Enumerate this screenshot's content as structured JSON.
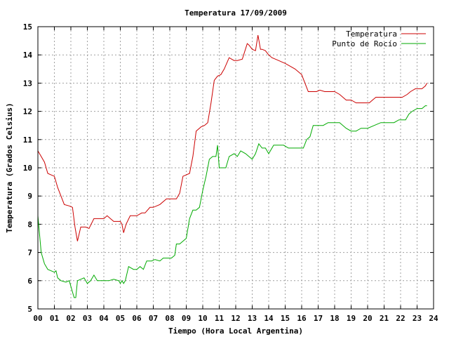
{
  "chart_data": {
    "type": "line",
    "title": "Temperatura 17/09/2009",
    "xlabel": "Tiempo (Hora Local Argentina)",
    "ylabel": "Temperatura (Grados Celsius)",
    "xlim": [
      0,
      24
    ],
    "ylim": [
      5,
      15
    ],
    "x_ticks": [
      "00",
      "01",
      "02",
      "03",
      "04",
      "05",
      "06",
      "07",
      "08",
      "09",
      "10",
      "11",
      "12",
      "13",
      "14",
      "15",
      "16",
      "17",
      "18",
      "19",
      "20",
      "21",
      "22",
      "23",
      "24"
    ],
    "y_ticks": [
      "5",
      "6",
      "7",
      "8",
      "9",
      "10",
      "11",
      "12",
      "13",
      "14",
      "15"
    ],
    "grid": true,
    "legend_position": "top-right",
    "series": [
      {
        "name": "Temperatura",
        "color": "#cc0000",
        "x": [
          0,
          0.2,
          0.4,
          0.6,
          0.8,
          1.0,
          1.2,
          1.4,
          1.6,
          1.9,
          2.1,
          2.25,
          2.4,
          2.6,
          2.9,
          3.1,
          3.4,
          3.7,
          4.0,
          4.2,
          4.4,
          4.6,
          4.8,
          5.0,
          5.1,
          5.2,
          5.35,
          5.6,
          6.0,
          6.3,
          6.5,
          6.8,
          7.0,
          7.4,
          7.8,
          8.2,
          8.4,
          8.6,
          8.8,
          9.0,
          9.2,
          9.4,
          9.6,
          9.9,
          10.1,
          10.3,
          10.5,
          10.7,
          10.9,
          11.1,
          11.3,
          11.6,
          11.9,
          12.1,
          12.4,
          12.7,
          12.8,
          13.0,
          13.2,
          13.35,
          13.5,
          13.6,
          13.8,
          14.0,
          14.2,
          14.4,
          14.6,
          14.8,
          15.0,
          15.3,
          15.6,
          15.8,
          16.0,
          16.2,
          16.4,
          16.6,
          16.9,
          17.1,
          17.4,
          17.7,
          18.0,
          18.3,
          18.7,
          19.0,
          19.3,
          19.6,
          19.9,
          20.1,
          20.3,
          20.5,
          20.8,
          21.1,
          21.5,
          21.9,
          22.1,
          22.4,
          22.6,
          22.9,
          23.1,
          23.3,
          23.5,
          23.6
        ],
        "values": [
          10.6,
          10.4,
          10.2,
          9.8,
          9.75,
          9.7,
          9.3,
          9.0,
          8.7,
          8.65,
          8.6,
          7.9,
          7.4,
          7.9,
          7.9,
          7.85,
          8.2,
          8.2,
          8.2,
          8.3,
          8.2,
          8.1,
          8.1,
          8.1,
          8.0,
          7.7,
          8.0,
          8.3,
          8.3,
          8.4,
          8.4,
          8.6,
          8.6,
          8.7,
          8.9,
          8.9,
          8.9,
          9.1,
          9.7,
          9.75,
          9.8,
          10.4,
          11.3,
          11.45,
          11.5,
          11.6,
          12.3,
          13.1,
          13.25,
          13.3,
          13.5,
          13.9,
          13.8,
          13.8,
          13.85,
          14.4,
          14.35,
          14.2,
          14.15,
          14.7,
          14.2,
          14.2,
          14.15,
          14.0,
          13.9,
          13.85,
          13.8,
          13.75,
          13.7,
          13.6,
          13.5,
          13.4,
          13.3,
          13.0,
          12.7,
          12.7,
          12.7,
          12.75,
          12.7,
          12.7,
          12.7,
          12.6,
          12.4,
          12.4,
          12.3,
          12.3,
          12.3,
          12.3,
          12.4,
          12.5,
          12.5,
          12.5,
          12.5,
          12.5,
          12.5,
          12.6,
          12.7,
          12.8,
          12.8,
          12.8,
          12.9,
          13.0
        ]
      },
      {
        "name": "Punto de Rocío",
        "color": "#00aa00",
        "x": [
          0,
          0.2,
          0.4,
          0.6,
          0.8,
          1.0,
          1.1,
          1.2,
          1.4,
          1.7,
          1.9,
          2.0,
          2.1,
          2.2,
          2.3,
          2.4,
          2.6,
          2.8,
          3.0,
          3.2,
          3.4,
          3.6,
          3.8,
          4.0,
          4.3,
          4.6,
          4.9,
          5.0,
          5.1,
          5.2,
          5.3,
          5.5,
          5.8,
          6.0,
          6.2,
          6.4,
          6.6,
          6.9,
          7.1,
          7.4,
          7.6,
          7.9,
          8.1,
          8.3,
          8.4,
          8.6,
          8.8,
          9.0,
          9.2,
          9.4,
          9.6,
          9.8,
          10.0,
          10.2,
          10.4,
          10.6,
          10.8,
          10.9,
          11.0,
          11.2,
          11.4,
          11.6,
          11.9,
          12.1,
          12.3,
          12.6,
          12.8,
          13.0,
          13.2,
          13.4,
          13.6,
          13.8,
          14.0,
          14.3,
          14.6,
          14.9,
          15.2,
          15.6,
          15.9,
          16.1,
          16.3,
          16.5,
          16.7,
          17.0,
          17.3,
          17.6,
          17.9,
          18.3,
          18.7,
          19.0,
          19.3,
          19.6,
          20.0,
          20.4,
          20.8,
          21.2,
          21.6,
          21.9,
          22.1,
          22.3,
          22.5,
          22.7,
          23.0,
          23.3,
          23.5,
          23.6
        ],
        "values": [
          8.3,
          7.0,
          6.6,
          6.4,
          6.35,
          6.3,
          6.35,
          6.1,
          6.0,
          5.95,
          6.0,
          5.8,
          5.6,
          5.4,
          5.4,
          6.0,
          6.05,
          6.1,
          5.9,
          6.0,
          6.2,
          6.0,
          6.0,
          6.0,
          6.0,
          6.05,
          6.0,
          5.9,
          6.0,
          5.9,
          6.0,
          6.5,
          6.4,
          6.4,
          6.5,
          6.4,
          6.7,
          6.7,
          6.75,
          6.7,
          6.8,
          6.8,
          6.8,
          6.9,
          7.3,
          7.3,
          7.4,
          7.5,
          8.2,
          8.5,
          8.5,
          8.6,
          9.2,
          9.7,
          10.3,
          10.4,
          10.4,
          10.8,
          10.0,
          10.0,
          10.0,
          10.4,
          10.5,
          10.4,
          10.6,
          10.5,
          10.4,
          10.3,
          10.5,
          10.85,
          10.7,
          10.7,
          10.5,
          10.8,
          10.8,
          10.8,
          10.7,
          10.7,
          10.7,
          10.7,
          11.0,
          11.1,
          11.5,
          11.5,
          11.5,
          11.6,
          11.6,
          11.6,
          11.4,
          11.3,
          11.3,
          11.4,
          11.4,
          11.5,
          11.6,
          11.6,
          11.6,
          11.7,
          11.7,
          11.7,
          11.9,
          12.0,
          12.1,
          12.1,
          12.2,
          12.2
        ]
      }
    ]
  }
}
